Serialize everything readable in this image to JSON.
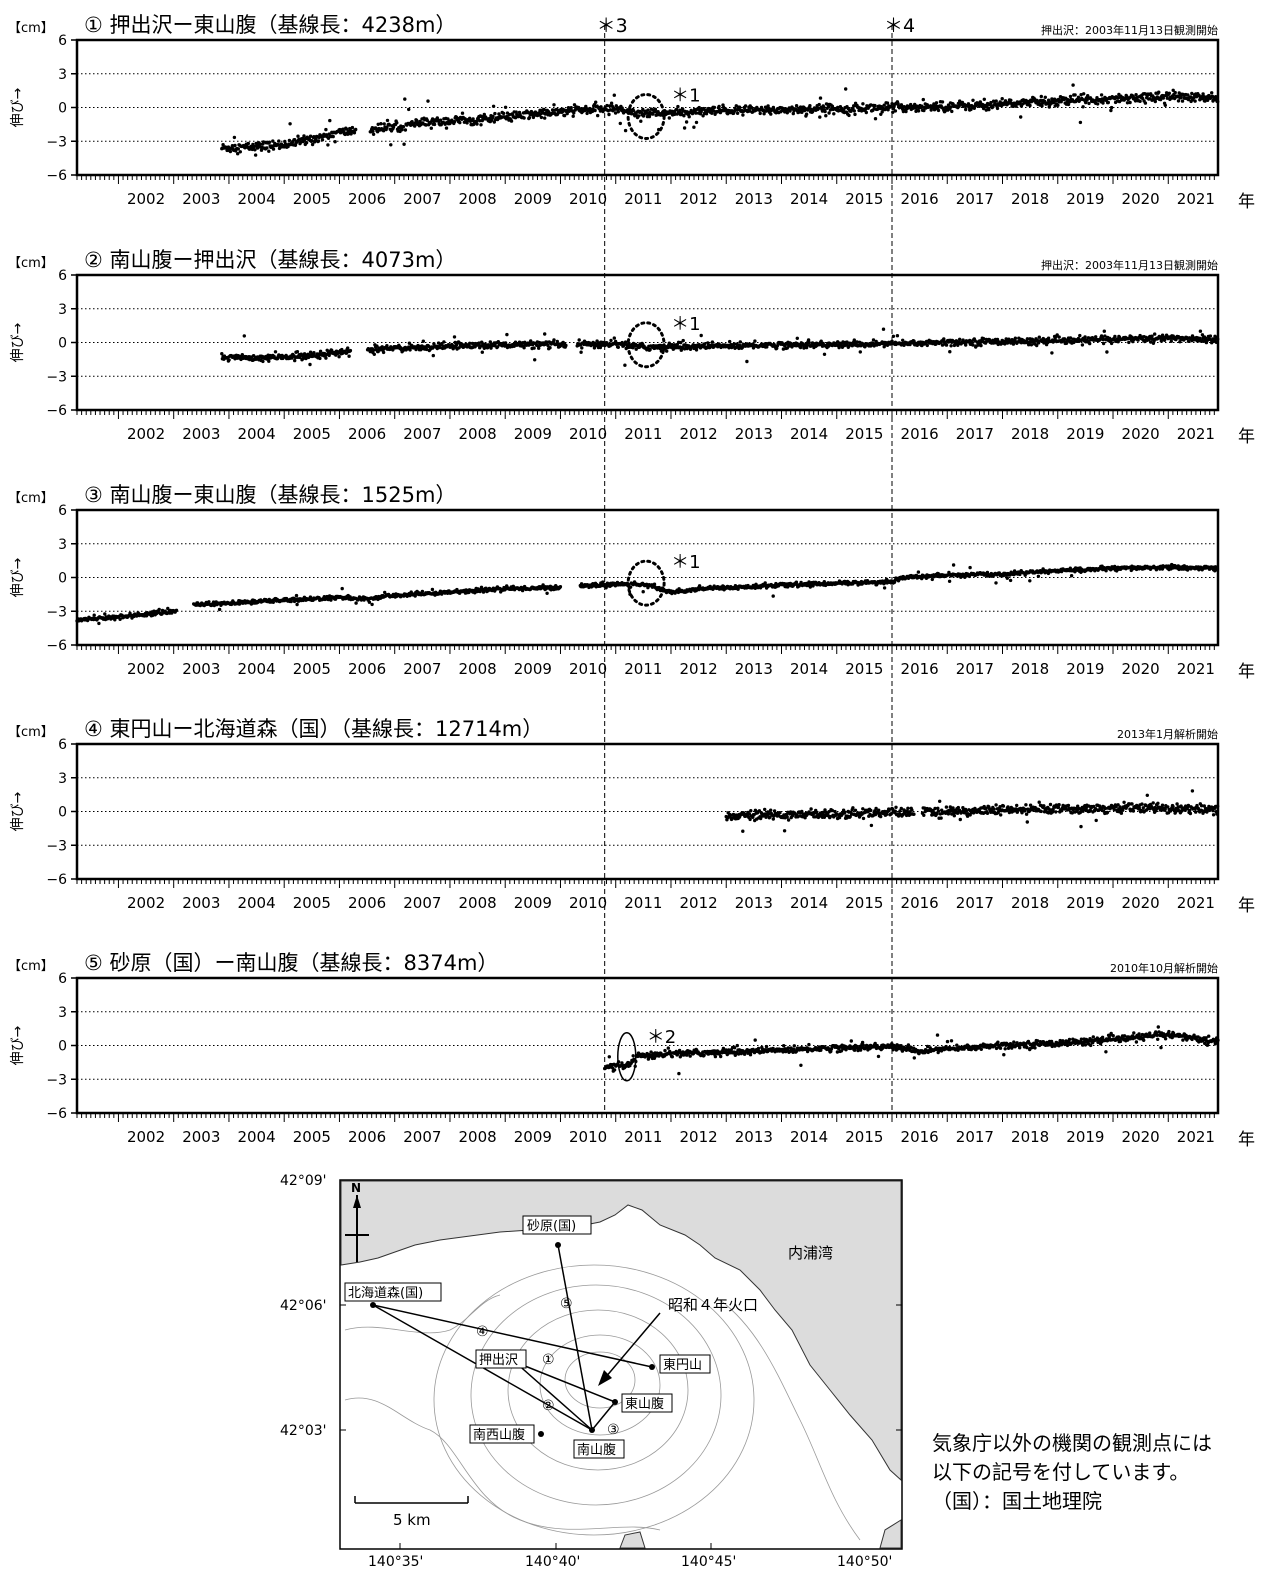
{
  "panels": [
    {
      "title": "① 押出沢ー東山腹（基線長：4238m）",
      "note": "押出沢：2003年11月13日観測開始",
      "marker1": "＊1",
      "marker2": ""
    },
    {
      "title": "② 南山腹ー押出沢（基線長：4073m）",
      "note": "押出沢：2003年11月13日観測開始",
      "marker1": "＊1",
      "marker2": ""
    },
    {
      "title": "③ 南山腹ー東山腹（基線長：1525m）",
      "note": "",
      "marker1": "＊1",
      "marker2": ""
    },
    {
      "title": "④ 東円山ー北海道森（国）（基線長：12714m）",
      "note": "2013年1月解析開始",
      "marker1": "",
      "marker2": ""
    },
    {
      "title": "⑤ 砂原（国）ー南山腹（基線長：8374m）",
      "note": "2010年10月解析開始",
      "marker1": "",
      "marker2": "＊2"
    }
  ],
  "common": {
    "unit": "【cm】",
    "ylabel": "伸び→",
    "xunit": "年",
    "vline_labels": [
      "＊3",
      "＊4"
    ]
  },
  "chart_data": [
    {
      "type": "scatter",
      "title": "① 押出沢ー東山腹（基線長：4238m）",
      "ylabel": "伸び→",
      "xunit": "年",
      "ylim": [
        -6,
        6
      ],
      "yticks": [
        6,
        3,
        0,
        -3,
        -6
      ],
      "xlim": [
        2001.25,
        2021.9
      ],
      "xticks": [
        2002,
        2003,
        2004,
        2005,
        2006,
        2007,
        2008,
        2009,
        2010,
        2011,
        2012,
        2013,
        2014,
        2015,
        2016,
        2017,
        2018,
        2019,
        2020,
        2021
      ],
      "series": [
        {
          "x": [
            2003.9,
            2004.5,
            2005.0,
            2005.5,
            2006.0,
            2006.5,
            2007.0,
            2007.5,
            2008.0,
            2008.5,
            2009.0,
            2009.5,
            2010.0,
            2010.5,
            2011.0,
            2011.5,
            2012.0,
            2013.0,
            2014.0,
            2015.0,
            2016.0,
            2017.0,
            2018.0,
            2019.0,
            2020.0,
            2021.0,
            2021.8
          ],
          "y": [
            -3.6,
            -3.5,
            -3.3,
            -2.8,
            -2.2,
            -2.0,
            -1.7,
            -1.4,
            -1.2,
            -1.1,
            -0.9,
            -0.6,
            -0.4,
            -0.2,
            -0.1,
            -0.5,
            -0.5,
            -0.3,
            -0.2,
            -0.1,
            0.0,
            0.1,
            0.3,
            0.6,
            0.8,
            1.0,
            0.8
          ]
        }
      ],
      "vlines": [
        2010.8,
        2016.0
      ],
      "gaps": [
        [
          2006.3,
          2006.55
        ]
      ],
      "start": 2003.87,
      "end": 2021.9,
      "noise": 0.35,
      "annotations": [
        {
          "label": "＊1",
          "circle": [
            2011.55,
            -0.8
          ]
        }
      ]
    },
    {
      "type": "scatter",
      "title": "② 南山腹ー押出沢（基線長：4073m）",
      "ylabel": "伸び→",
      "xunit": "年",
      "ylim": [
        -6,
        6
      ],
      "yticks": [
        6,
        3,
        0,
        -3,
        -6
      ],
      "xlim": [
        2001.25,
        2021.9
      ],
      "xticks": [
        2002,
        2003,
        2004,
        2005,
        2006,
        2007,
        2008,
        2009,
        2010,
        2011,
        2012,
        2013,
        2014,
        2015,
        2016,
        2017,
        2018,
        2019,
        2020,
        2021
      ],
      "series": [
        {
          "x": [
            2003.9,
            2004.5,
            2005.0,
            2006.0,
            2006.5,
            2007.0,
            2008.0,
            2009.0,
            2010.0,
            2010.5,
            2011.0,
            2011.5,
            2012.0,
            2013.0,
            2014.0,
            2015.0,
            2016.0,
            2017.0,
            2018.0,
            2019.0,
            2020.0,
            2021.0,
            2021.8
          ],
          "y": [
            -1.3,
            -1.4,
            -1.3,
            -0.9,
            -0.7,
            -0.5,
            -0.3,
            -0.2,
            -0.2,
            -0.2,
            -0.1,
            -0.4,
            -0.4,
            -0.3,
            -0.2,
            -0.2,
            -0.1,
            0.0,
            0.1,
            0.1,
            0.3,
            0.4,
            0.3
          ]
        }
      ],
      "vlines": [
        2010.8,
        2016.0
      ],
      "gaps": [
        [
          2006.2,
          2006.5
        ],
        [
          2010.1,
          2010.3
        ]
      ],
      "start": 2003.87,
      "end": 2021.9,
      "noise": 0.25,
      "annotations": [
        {
          "label": "＊1",
          "circle": [
            2011.55,
            -0.2
          ]
        }
      ]
    },
    {
      "type": "scatter",
      "title": "③ 南山腹ー東山腹（基線長：1525m）",
      "ylabel": "伸び→",
      "xunit": "年",
      "ylim": [
        -6,
        6
      ],
      "yticks": [
        6,
        3,
        0,
        -3,
        -6
      ],
      "xlim": [
        2001.25,
        2021.9
      ],
      "xticks": [
        2002,
        2003,
        2004,
        2005,
        2006,
        2007,
        2008,
        2009,
        2010,
        2011,
        2012,
        2013,
        2014,
        2015,
        2016,
        2017,
        2018,
        2019,
        2020,
        2021
      ],
      "series": [
        {
          "x": [
            2001.25,
            2002.0,
            2003.0,
            2003.3,
            2004.0,
            2005.0,
            2006.0,
            2006.5,
            2007.0,
            2008.0,
            2009.0,
            2010.0,
            2010.5,
            2011.0,
            2011.5,
            2012.0,
            2012.5,
            2013.0,
            2014.0,
            2015.0,
            2016.0,
            2016.2,
            2017.0,
            2018.0,
            2019.0,
            2020.0,
            2021.0,
            2021.8
          ],
          "y": [
            -3.8,
            -3.5,
            -3.0,
            -2.4,
            -2.3,
            -2.0,
            -1.8,
            -1.9,
            -1.6,
            -1.3,
            -1.0,
            -0.9,
            -0.7,
            -0.6,
            -0.6,
            -1.3,
            -1.0,
            -0.9,
            -0.7,
            -0.5,
            -0.4,
            0.0,
            0.2,
            0.3,
            0.6,
            0.8,
            0.9,
            0.8
          ]
        }
      ],
      "vlines": [
        2010.8,
        2016.0
      ],
      "gaps": [
        [
          2003.05,
          2003.35
        ],
        [
          2010.0,
          2010.35
        ]
      ],
      "start": 2001.25,
      "end": 2021.9,
      "noise": 0.15,
      "annotations": [
        {
          "label": "＊1",
          "circle": [
            2011.55,
            -0.5
          ]
        }
      ]
    },
    {
      "type": "scatter",
      "title": "④ 東円山ー北海道森（国）（基線長：12714m）",
      "ylabel": "伸び→",
      "xunit": "年",
      "ylim": [
        -6,
        6
      ],
      "yticks": [
        6,
        3,
        0,
        -3,
        -6
      ],
      "xlim": [
        2001.25,
        2021.9
      ],
      "xticks": [
        2002,
        2003,
        2004,
        2005,
        2006,
        2007,
        2008,
        2009,
        2010,
        2011,
        2012,
        2013,
        2014,
        2015,
        2016,
        2017,
        2018,
        2019,
        2020,
        2021
      ],
      "series": [
        {
          "x": [
            2013.0,
            2014.0,
            2015.0,
            2016.0,
            2017.0,
            2018.0,
            2019.0,
            2020.0,
            2021.0,
            2021.8
          ],
          "y": [
            -0.4,
            -0.3,
            -0.2,
            -0.1,
            0.0,
            0.1,
            0.2,
            0.3,
            0.3,
            0.2
          ]
        }
      ],
      "vlines": [
        2010.8,
        2016.0
      ],
      "gaps": [
        [
          2016.4,
          2016.55
        ]
      ],
      "start": 2013.0,
      "end": 2021.9,
      "noise": 0.35,
      "annotations": []
    },
    {
      "type": "scatter",
      "title": "⑤ 砂原（国）ー南山腹（基線長：8374m）",
      "ylabel": "伸び→",
      "xunit": "年",
      "ylim": [
        -6,
        6
      ],
      "yticks": [
        6,
        3,
        0,
        -3,
        -6
      ],
      "xlim": [
        2001.25,
        2021.9
      ],
      "xticks": [
        2002,
        2003,
        2004,
        2005,
        2006,
        2007,
        2008,
        2009,
        2010,
        2011,
        2012,
        2013,
        2014,
        2015,
        2016,
        2017,
        2018,
        2019,
        2020,
        2021
      ],
      "series": [
        {
          "x": [
            2010.8,
            2011.2,
            2011.4,
            2012.0,
            2013.0,
            2014.0,
            2015.0,
            2016.0,
            2016.5,
            2017.0,
            2018.0,
            2019.0,
            2020.0,
            2021.0,
            2021.8
          ],
          "y": [
            -2.0,
            -1.8,
            -1.0,
            -0.7,
            -0.6,
            -0.4,
            -0.2,
            -0.1,
            -0.5,
            -0.3,
            0.0,
            0.2,
            0.5,
            1.0,
            0.4
          ]
        }
      ],
      "vlines": [
        2010.8,
        2016.0
      ],
      "gaps": [],
      "start": 2010.8,
      "end": 2021.9,
      "noise": 0.25,
      "annotations": [
        {
          "label": "＊2",
          "ellipse": [
            2011.2,
            -1.0
          ]
        }
      ]
    }
  ],
  "map": {
    "lat_labels": [
      "42°09'",
      "42°06'",
      "42°03'"
    ],
    "lon_labels": [
      "140°35'",
      "140°40'",
      "140°45'",
      "140°50'"
    ],
    "sea_label": "内浦湾",
    "crater_label": "昭和４年火口",
    "scale_label": "5 km",
    "north": "N",
    "stations": [
      "砂原(国)",
      "北海道森(国)",
      "押出沢",
      "東円山",
      "東山腹",
      "南西山腹",
      "南山腹"
    ],
    "baseline_numbers": [
      "①",
      "②",
      "③",
      "④",
      "⑤"
    ]
  },
  "legend_note": {
    "line1": "気象庁以外の機関の観測点には",
    "line2": "以下の記号を付しています。",
    "line3": "（国）：国土地理院"
  }
}
